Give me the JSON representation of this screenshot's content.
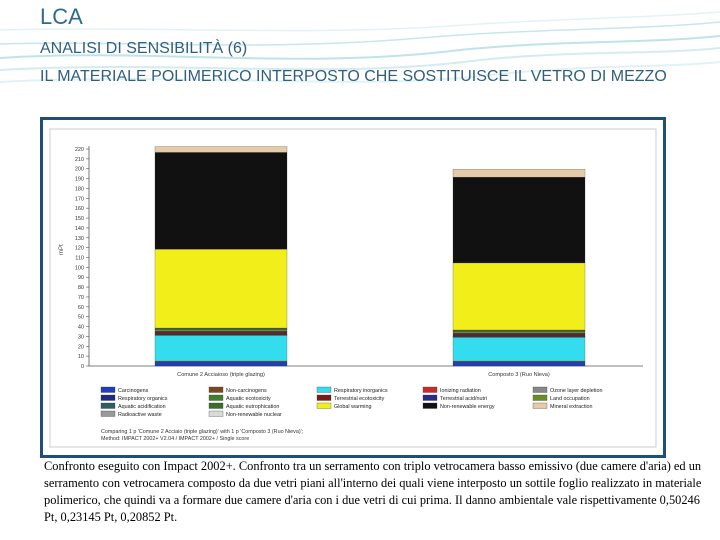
{
  "header": {
    "title": "LCA",
    "subtitle": "ANALISI DI SENSIBILITÀ (6)",
    "heading": "IL MATERIALE POLIMERICO INTERPOSTO CHE SOSTITUISCE IL VETRO DI MEZZO"
  },
  "caption": "Confronto eseguito con Impact 2002+. Confronto tra un serramento con triplo vetrocamera basso emissivo (due camere d'aria) ed un serramento con vetrocamera composto da due vetri piani all'interno dei quali viene interposto un sottile foglio realizzato in materiale polimerico, che quindi va a formare due camere d'aria con i due vetri di cui prima. Il danno ambientale vale rispettivamente 0,50246 Pt, 0,23145 Pt, 0,20852 Pt.",
  "chart_data": {
    "type": "bar",
    "stacked": true,
    "ylabel": "mPt",
    "ylim": [
      0,
      220
    ],
    "yticks": [
      0,
      10,
      20,
      30,
      40,
      50,
      60,
      70,
      80,
      90,
      100,
      110,
      120,
      130,
      140,
      150,
      160,
      170,
      180,
      190,
      200,
      210,
      220
    ],
    "grid": false,
    "legend_position": "bottom",
    "categories": [
      "Comune 2 Acciaioso (triple glazing)",
      "Composto 3 (Ruo Nieva)"
    ],
    "series": [
      {
        "name": "Carcinogens",
        "color": "#1f3fbf",
        "values": [
          4,
          4
        ]
      },
      {
        "name": "Non-carcinogens",
        "color": "#7a4a1e",
        "values": [
          1,
          1
        ]
      },
      {
        "name": "Respiratory inorganics",
        "color": "#33ddee",
        "values": [
          26,
          24
        ]
      },
      {
        "name": "Ionizing radiation",
        "color": "#cc2a2a",
        "values": [
          0.5,
          0.5
        ]
      },
      {
        "name": "Ozone layer depletion",
        "color": "#888888",
        "values": [
          0.2,
          0.2
        ]
      },
      {
        "name": "Respiratory organics",
        "color": "#1c2a80",
        "values": [
          0.3,
          0.3
        ]
      },
      {
        "name": "Aquatic ecotoxicity",
        "color": "#3f7f2f",
        "values": [
          0.3,
          0.3
        ]
      },
      {
        "name": "Terrestrial ecotoxicity",
        "color": "#7a1a1a",
        "values": [
          2,
          2
        ]
      },
      {
        "name": "Terrestrial acid/nutri",
        "color": "#2a2a8a",
        "values": [
          1,
          1
        ]
      },
      {
        "name": "Land occupation",
        "color": "#6b8e23",
        "values": [
          2,
          2
        ]
      },
      {
        "name": "Aquatic acidification",
        "color": "#2f5f5f",
        "values": [
          0.2,
          0.2
        ]
      },
      {
        "name": "Aquatic eutrophication",
        "color": "#3a6f2a",
        "values": [
          1,
          1
        ]
      },
      {
        "name": "Global warming",
        "color": "#f2ee1a",
        "values": [
          80,
          68
        ]
      },
      {
        "name": "Non-renewable energy",
        "color": "#111111",
        "values": [
          98,
          87
        ]
      },
      {
        "name": "Mineral extraction",
        "color": "#e6cba8",
        "values": [
          6,
          8
        ]
      },
      {
        "name": "Radioactive waste",
        "color": "#9a9a9a",
        "values": [
          0,
          0
        ]
      },
      {
        "name": "Non-renewable nuclear",
        "color": "#d9d9d9",
        "values": [
          0,
          0
        ]
      }
    ],
    "footnote": [
      "Comparing 1 p 'Comune 2 Acciaio (triple glazing)' with 1 p 'Composto 3 (Ruo Nieva)';",
      "Method: IMPACT 2002+ V2.04 / IMPACT 2002+ / Single score"
    ]
  }
}
